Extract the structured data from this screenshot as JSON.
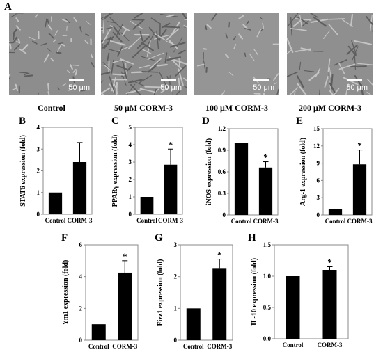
{
  "panel_A": {
    "letter": "A",
    "images": [
      {
        "label": "Control",
        "scale": "50 μm"
      },
      {
        "label": "50 μM CORM-3",
        "scale": "50 μm"
      },
      {
        "label": "100 μM CORM-3",
        "scale": "50 μm"
      },
      {
        "label": "200 μM CORM-3",
        "scale": "50 μm"
      }
    ]
  },
  "chart_data": [
    {
      "panel": "B",
      "type": "bar",
      "categories": [
        "Control",
        "CORM-3"
      ],
      "values": [
        1,
        2.4
      ],
      "errors": [
        0,
        0.9
      ],
      "significant": [
        false,
        false
      ],
      "ylabel": "STAT6 expression (fold)",
      "ylim": [
        0,
        4
      ],
      "yticks": [
        "0",
        "1",
        "2",
        "3",
        "4"
      ]
    },
    {
      "panel": "C",
      "type": "bar",
      "categories": [
        "Control",
        "CORM-3"
      ],
      "values": [
        1,
        2.85
      ],
      "errors": [
        0,
        0.9
      ],
      "significant": [
        false,
        true
      ],
      "ylabel": "PPARγ expression (fold)",
      "ylim": [
        0,
        5
      ],
      "yticks": [
        "0",
        "1",
        "2",
        "3",
        "4",
        "5"
      ]
    },
    {
      "panel": "D",
      "type": "bar",
      "categories": [
        "Control",
        "CORM-3"
      ],
      "values": [
        1,
        0.66
      ],
      "errors": [
        0,
        0.08
      ],
      "significant": [
        false,
        true
      ],
      "ylabel": "iNOS expression (fold)",
      "ylim": [
        0,
        1.2
      ],
      "yticks": [
        "0",
        "0.3",
        "0.6",
        "0.9",
        "1.2"
      ]
    },
    {
      "panel": "E",
      "type": "bar",
      "categories": [
        "Control",
        "CORM-3"
      ],
      "values": [
        1,
        8.8
      ],
      "errors": [
        0,
        2.5
      ],
      "significant": [
        false,
        true
      ],
      "ylabel": "Arg-1 expression (fold)",
      "ylim": [
        0,
        15
      ],
      "yticks": [
        "0",
        "3",
        "6",
        "9",
        "12",
        "15"
      ]
    },
    {
      "panel": "F",
      "type": "bar",
      "categories": [
        "Control",
        "CORM-3"
      ],
      "values": [
        1,
        4.25
      ],
      "errors": [
        0,
        0.75
      ],
      "significant": [
        false,
        true
      ],
      "ylabel": "Ym1 expression (fold)",
      "ylim": [
        0,
        6
      ],
      "yticks": [
        "0",
        "2",
        "4",
        "6"
      ]
    },
    {
      "panel": "G",
      "type": "bar",
      "categories": [
        "Control",
        "CORM-3"
      ],
      "values": [
        1,
        2.27
      ],
      "errors": [
        0,
        0.28
      ],
      "significant": [
        false,
        true
      ],
      "ylabel": "Fizz1 expression (fold)",
      "ylim": [
        0,
        3
      ],
      "yticks": [
        "0",
        "1",
        "2",
        "3"
      ]
    },
    {
      "panel": "H",
      "type": "bar",
      "categories": [
        "Control",
        "CORM-3"
      ],
      "values": [
        1,
        1.1
      ],
      "errors": [
        0,
        0.05
      ],
      "significant": [
        false,
        true
      ],
      "ylabel": "IL-10 expression (fold)",
      "ylim": [
        0,
        1.5
      ],
      "yticks": [
        "0.0",
        "0.5",
        "1.0",
        "1.5"
      ]
    }
  ],
  "significance_mark": "*"
}
